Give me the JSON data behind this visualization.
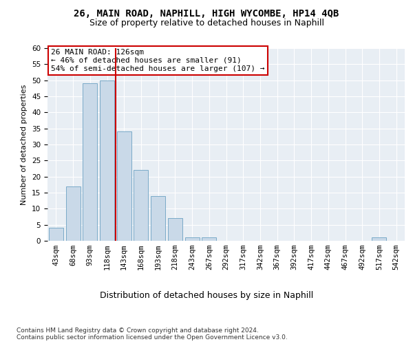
{
  "title1": "26, MAIN ROAD, NAPHILL, HIGH WYCOMBE, HP14 4QB",
  "title2": "Size of property relative to detached houses in Naphill",
  "xlabel": "Distribution of detached houses by size in Naphill",
  "ylabel": "Number of detached properties",
  "bar_labels": [
    "43sqm",
    "68sqm",
    "93sqm",
    "118sqm",
    "143sqm",
    "168sqm",
    "193sqm",
    "218sqm",
    "243sqm",
    "267sqm",
    "292sqm",
    "317sqm",
    "342sqm",
    "367sqm",
    "392sqm",
    "417sqm",
    "442sqm",
    "467sqm",
    "492sqm",
    "517sqm",
    "542sqm"
  ],
  "bar_values": [
    4,
    17,
    49,
    50,
    34,
    22,
    14,
    7,
    1,
    1,
    0,
    0,
    0,
    0,
    0,
    0,
    0,
    0,
    0,
    1,
    0
  ],
  "bar_color": "#c9d9e8",
  "bar_edgecolor": "#7aaac8",
  "vline_x": 3.5,
  "vline_color": "#cc0000",
  "annotation_text": "26 MAIN ROAD: 126sqm\n← 46% of detached houses are smaller (91)\n54% of semi-detached houses are larger (107) →",
  "annotation_box_color": "#ffffff",
  "annotation_box_edgecolor": "#cc0000",
  "ylim": [
    0,
    60
  ],
  "yticks": [
    0,
    5,
    10,
    15,
    20,
    25,
    30,
    35,
    40,
    45,
    50,
    55,
    60
  ],
  "bg_color": "#e8eef4",
  "footnote": "Contains HM Land Registry data © Crown copyright and database right 2024.\nContains public sector information licensed under the Open Government Licence v3.0.",
  "title1_fontsize": 10,
  "title2_fontsize": 9,
  "xlabel_fontsize": 9,
  "ylabel_fontsize": 8,
  "annotation_fontsize": 8,
  "footnote_fontsize": 6.5,
  "tick_fontsize": 7.5
}
